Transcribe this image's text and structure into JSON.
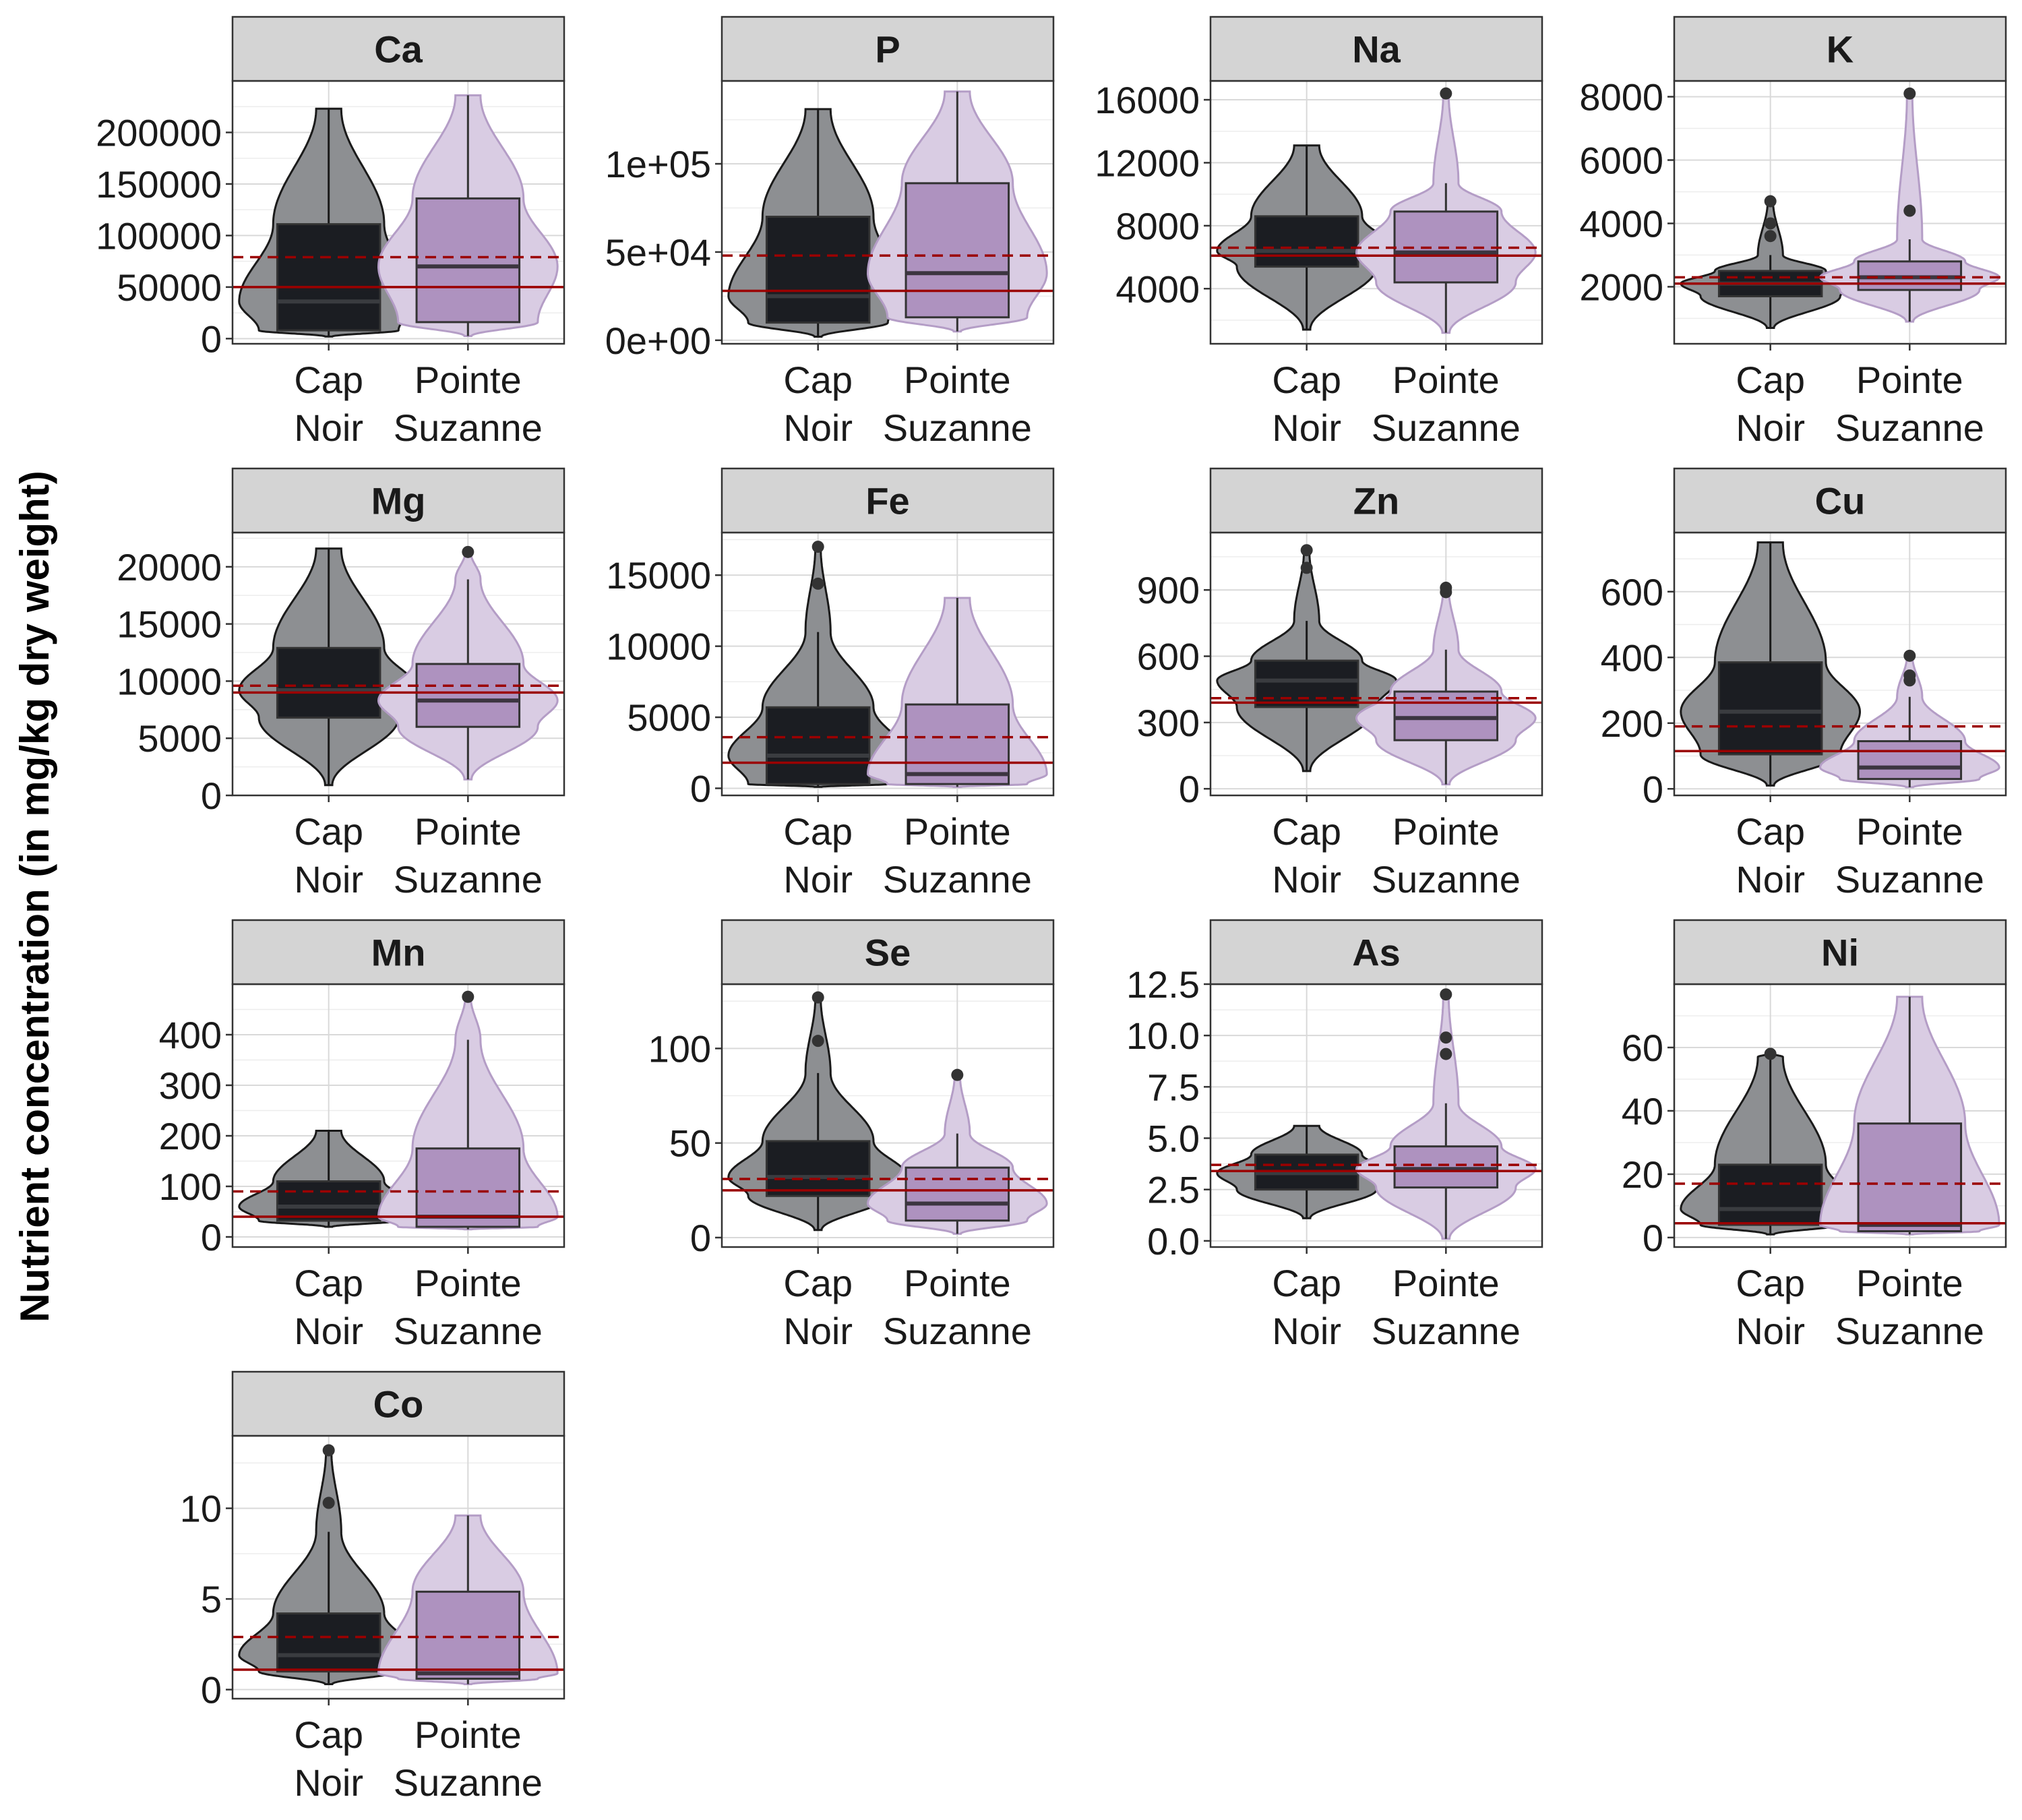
{
  "y_axis_label": "Nutrient concentration (in mg/kg dry weight)",
  "colors": {
    "cap_noir": "#1b1d22",
    "cap_noir_violin": "#8d8f92",
    "pointe_suzanne": "#ae92bf",
    "pointe_suzanne_violin": "#d9cce3",
    "reference_line": "#9b0000",
    "strip": "#d4d4d4"
  },
  "chart_data": [
    {
      "type": "box-violin",
      "title": "Ca",
      "categories": [
        "Cap\nNoir",
        "Pointe\nSuzanne"
      ],
      "ylim": [
        -5000,
        250000
      ],
      "yticks": [
        0,
        50000,
        100000,
        150000,
        200000
      ],
      "yticklabels": [
        "0",
        "50000",
        "100000",
        "150000",
        "200000"
      ],
      "series": [
        {
          "name": "Cap Noir",
          "min": 2000,
          "q1": 8000,
          "median": 36000,
          "q3": 111000,
          "max": 223000,
          "outliers": []
        },
        {
          "name": "Pointe Suzanne",
          "min": 2500,
          "q1": 16000,
          "median": 70000,
          "q3": 136000,
          "max": 236000,
          "outliers": []
        }
      ],
      "ref_solid": 50000,
      "ref_dashed": 79000
    },
    {
      "type": "box-violin",
      "title": "P",
      "categories": [
        "Cap\nNoir",
        "Pointe\nSuzanne"
      ],
      "ylim": [
        -2000,
        147000
      ],
      "yticks": [
        0,
        50000,
        100000
      ],
      "yticklabels": [
        "0e+00",
        "5e+04",
        "1e+05"
      ],
      "series": [
        {
          "name": "Cap Noir",
          "min": 2000,
          "q1": 10000,
          "median": 25000,
          "q3": 70000,
          "max": 131000,
          "outliers": []
        },
        {
          "name": "Pointe Suzanne",
          "min": 5000,
          "q1": 13000,
          "median": 38000,
          "q3": 89000,
          "max": 141000,
          "outliers": []
        }
      ],
      "ref_solid": 28000,
      "ref_dashed": 48000
    },
    {
      "type": "box-violin",
      "title": "Na",
      "categories": [
        "Cap\nNoir",
        "Pointe\nSuzanne"
      ],
      "ylim": [
        500,
        17200
      ],
      "yticks": [
        4000,
        8000,
        12000,
        16000
      ],
      "yticklabels": [
        "4000",
        "8000",
        "12000",
        "16000"
      ],
      "series": [
        {
          "name": "Cap Noir",
          "min": 1400,
          "q1": 5400,
          "median": 6400,
          "q3": 8600,
          "max": 13100,
          "outliers": []
        },
        {
          "name": "Pointe Suzanne",
          "min": 1200,
          "q1": 4400,
          "median": 6300,
          "q3": 8900,
          "max": 10700,
          "outliers": [
            16400
          ]
        }
      ],
      "ref_solid": 6100,
      "ref_dashed": 6600
    },
    {
      "type": "box-violin",
      "title": "K",
      "categories": [
        "Cap\nNoir",
        "Pointe\nSuzanne"
      ],
      "ylim": [
        200,
        8500
      ],
      "yticks": [
        2000,
        4000,
        6000,
        8000
      ],
      "yticklabels": [
        "2000",
        "4000",
        "6000",
        "8000"
      ],
      "series": [
        {
          "name": "Cap Noir",
          "min": 700,
          "q1": 1700,
          "median": 2100,
          "q3": 2500,
          "max": 3000,
          "outliers": [
            3600,
            4000,
            4700
          ]
        },
        {
          "name": "Pointe Suzanne",
          "min": 900,
          "q1": 1900,
          "median": 2300,
          "q3": 2800,
          "max": 3500,
          "outliers": [
            4400,
            8100
          ]
        }
      ],
      "ref_solid": 2100,
      "ref_dashed": 2300
    },
    {
      "type": "box-violin",
      "title": "Mg",
      "categories": [
        "Cap\nNoir",
        "Pointe\nSuzanne"
      ],
      "ylim": [
        0,
        23000
      ],
      "yticks": [
        0,
        5000,
        10000,
        15000,
        20000
      ],
      "yticklabels": [
        "0",
        "5000",
        "10000",
        "15000",
        "20000"
      ],
      "series": [
        {
          "name": "Cap Noir",
          "min": 900,
          "q1": 6800,
          "median": 9200,
          "q3": 12900,
          "max": 21600,
          "outliers": []
        },
        {
          "name": "Pointe Suzanne",
          "min": 1400,
          "q1": 6000,
          "median": 8300,
          "q3": 11500,
          "max": 18900,
          "outliers": [
            21300
          ]
        }
      ],
      "ref_solid": 9000,
      "ref_dashed": 9600
    },
    {
      "type": "box-violin",
      "title": "Fe",
      "categories": [
        "Cap\nNoir",
        "Pointe\nSuzanne"
      ],
      "ylim": [
        -500,
        18000
      ],
      "yticks": [
        0,
        5000,
        10000,
        15000
      ],
      "yticklabels": [
        "0",
        "5000",
        "10000",
        "15000"
      ],
      "series": [
        {
          "name": "Cap Noir",
          "min": 100,
          "q1": 300,
          "median": 2300,
          "q3": 5700,
          "max": 11000,
          "outliers": [
            14400,
            17000
          ]
        },
        {
          "name": "Pointe Suzanne",
          "min": 100,
          "q1": 300,
          "median": 1000,
          "q3": 5900,
          "max": 13400,
          "outliers": []
        }
      ],
      "ref_solid": 1800,
      "ref_dashed": 3600
    },
    {
      "type": "box-violin",
      "title": "Zn",
      "categories": [
        "Cap\nNoir",
        "Pointe\nSuzanne"
      ],
      "ylim": [
        -30,
        1160
      ],
      "yticks": [
        0,
        300,
        600,
        900
      ],
      "yticklabels": [
        "0",
        "300",
        "600",
        "900"
      ],
      "series": [
        {
          "name": "Cap Noir",
          "min": 80,
          "q1": 370,
          "median": 490,
          "q3": 580,
          "max": 760,
          "outliers": [
            1000,
            1080
          ]
        },
        {
          "name": "Pointe Suzanne",
          "min": 20,
          "q1": 220,
          "median": 320,
          "q3": 440,
          "max": 630,
          "outliers": [
            890,
            910
          ]
        }
      ],
      "ref_solid": 390,
      "ref_dashed": 410
    },
    {
      "type": "box-violin",
      "title": "Cu",
      "categories": [
        "Cap\nNoir",
        "Pointe\nSuzanne"
      ],
      "ylim": [
        -20,
        780
      ],
      "yticks": [
        0,
        200,
        400,
        600
      ],
      "yticklabels": [
        "0",
        "200",
        "400",
        "600"
      ],
      "series": [
        {
          "name": "Cap Noir",
          "min": 10,
          "q1": 105,
          "median": 235,
          "q3": 385,
          "max": 750,
          "outliers": []
        },
        {
          "name": "Pointe Suzanne",
          "min": 5,
          "q1": 30,
          "median": 65,
          "q3": 145,
          "max": 280,
          "outliers": [
            330,
            345,
            405
          ]
        }
      ],
      "ref_solid": 115,
      "ref_dashed": 190
    },
    {
      "type": "box-violin",
      "title": "Mn",
      "categories": [
        "Cap\nNoir",
        "Pointe\nSuzanne"
      ],
      "ylim": [
        -20,
        500
      ],
      "yticks": [
        0,
        100,
        200,
        300,
        400
      ],
      "yticklabels": [
        "0",
        "100",
        "200",
        "300",
        "400"
      ],
      "series": [
        {
          "name": "Cap Noir",
          "min": 20,
          "q1": 32,
          "median": 60,
          "q3": 110,
          "max": 210,
          "outliers": []
        },
        {
          "name": "Pointe Suzanne",
          "min": 15,
          "q1": 20,
          "median": 40,
          "q3": 175,
          "max": 390,
          "outliers": [
            475
          ]
        }
      ],
      "ref_solid": 40,
      "ref_dashed": 90
    },
    {
      "type": "box-violin",
      "title": "Se",
      "categories": [
        "Cap\nNoir",
        "Pointe\nSuzanne"
      ],
      "ylim": [
        -5,
        134
      ],
      "yticks": [
        0,
        50,
        100
      ],
      "yticklabels": [
        "0",
        "50",
        "100"
      ],
      "series": [
        {
          "name": "Cap Noir",
          "min": 4,
          "q1": 22,
          "median": 32,
          "q3": 51,
          "max": 87,
          "outliers": [
            104,
            127
          ]
        },
        {
          "name": "Pointe Suzanne",
          "min": 2,
          "q1": 9,
          "median": 18,
          "q3": 37,
          "max": 55,
          "outliers": [
            86
          ]
        }
      ],
      "ref_solid": 25,
      "ref_dashed": 31
    },
    {
      "type": "box-violin",
      "title": "As",
      "categories": [
        "Cap\nNoir",
        "Pointe\nSuzanne"
      ],
      "ylim": [
        -0.3,
        12.5
      ],
      "yticks": [
        0,
        2.5,
        5,
        7.5,
        10,
        12.5
      ],
      "yticklabels": [
        "0.0",
        "2.5",
        "5.0",
        "7.5",
        "10.0",
        "12.5"
      ],
      "series": [
        {
          "name": "Cap Noir",
          "min": 1.1,
          "q1": 2.5,
          "median": 3.3,
          "q3": 4.2,
          "max": 5.6,
          "outliers": []
        },
        {
          "name": "Pointe Suzanne",
          "min": 0.1,
          "q1": 2.6,
          "median": 3.5,
          "q3": 4.6,
          "max": 6.7,
          "outliers": [
            9.1,
            9.9,
            12.0
          ]
        }
      ],
      "ref_solid": 3.4,
      "ref_dashed": 3.7
    },
    {
      "type": "box-violin",
      "title": "Ni",
      "categories": [
        "Cap\nNoir",
        "Pointe\nSuzanne"
      ],
      "ylim": [
        -3,
        80
      ],
      "yticks": [
        0,
        20,
        40,
        60
      ],
      "yticklabels": [
        "0",
        "20",
        "40",
        "60"
      ],
      "series": [
        {
          "name": "Cap Noir",
          "min": 1,
          "q1": 4,
          "median": 9,
          "q3": 23,
          "max": 57,
          "outliers": [
            58
          ]
        },
        {
          "name": "Pointe Suzanne",
          "min": 1,
          "q1": 2,
          "median": 4,
          "q3": 36,
          "max": 76,
          "outliers": []
        }
      ],
      "ref_solid": 4.5,
      "ref_dashed": 17
    },
    {
      "type": "box-violin",
      "title": "Co",
      "categories": [
        "Cap\nNoir",
        "Pointe\nSuzanne"
      ],
      "ylim": [
        -0.5,
        14
      ],
      "yticks": [
        0,
        5,
        10
      ],
      "yticklabels": [
        "0",
        "5",
        "10"
      ],
      "series": [
        {
          "name": "Cap Noir",
          "min": 0.3,
          "q1": 1.0,
          "median": 1.9,
          "q3": 4.2,
          "max": 8.7,
          "outliers": [
            10.3,
            13.2
          ]
        },
        {
          "name": "Pointe Suzanne",
          "min": 0.3,
          "q1": 0.6,
          "median": 0.9,
          "q3": 5.4,
          "max": 9.6,
          "outliers": []
        }
      ],
      "ref_solid": 1.1,
      "ref_dashed": 2.9
    }
  ]
}
